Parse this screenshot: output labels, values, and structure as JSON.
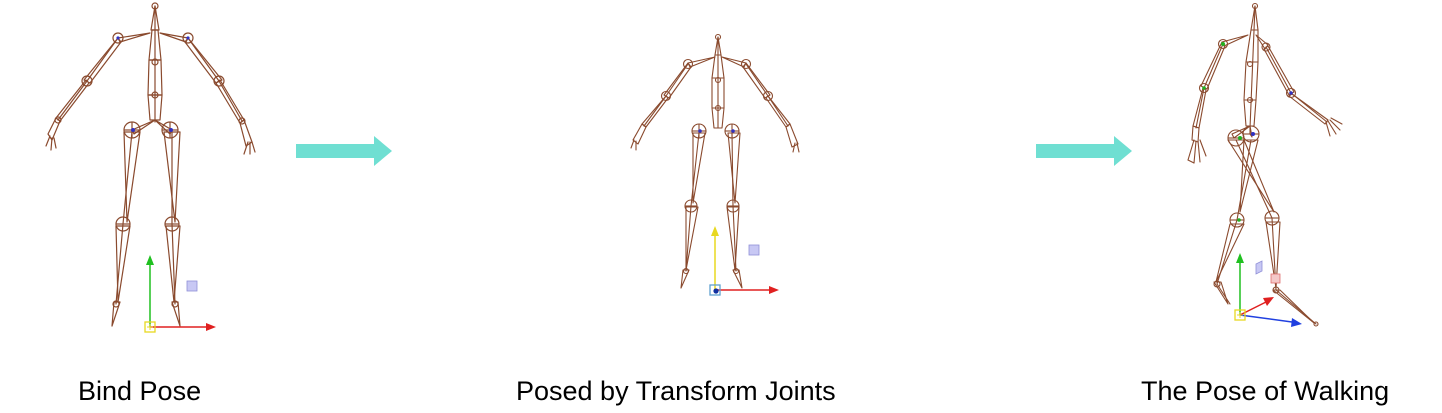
{
  "captions": {
    "bind_pose": "Bind Pose",
    "posed": "Posed by Transform Joints",
    "walking": "The Pose of Walking"
  },
  "colors": {
    "arrow": "#6fdfd2",
    "bone": "#8a4a2e",
    "joint_ring": "#8a4a2e",
    "axis_x": "#e02020",
    "axis_y": "#20c020",
    "axis_y_alt": "#e8d820",
    "axis_z": "#2040e0",
    "gizmo_box": "#b8b8f0",
    "root_box": "#e8d820"
  },
  "figures": [
    "bind-pose",
    "posed-by-transform-joints",
    "walking-pose"
  ],
  "icons": [
    "right-arrow-icon",
    "right-arrow-icon"
  ]
}
